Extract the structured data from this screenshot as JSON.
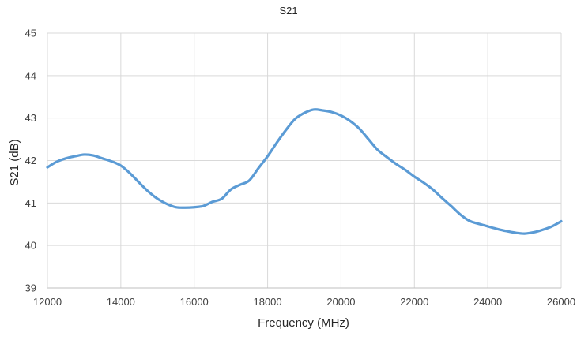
{
  "chart_data": {
    "type": "line",
    "title": "S21",
    "xlabel": "Frequency (MHz)",
    "ylabel": "S21 (dB)",
    "xlim": [
      12000,
      26000
    ],
    "ylim": [
      39,
      45
    ],
    "xticks": [
      "12000",
      "14000",
      "16000",
      "18000",
      "20000",
      "22000",
      "24000",
      "26000"
    ],
    "yticks": [
      "39",
      "40",
      "41",
      "42",
      "43",
      "44",
      "45"
    ],
    "grid": true,
    "legend": "none",
    "series": [
      {
        "color": "#5b9bd5",
        "x": [
          12000,
          12250,
          12500,
          12750,
          13000,
          13250,
          13500,
          13750,
          14000,
          14250,
          14500,
          14750,
          15000,
          15250,
          15500,
          15750,
          16000,
          16250,
          16500,
          16750,
          17000,
          17250,
          17500,
          17750,
          18000,
          18250,
          18500,
          18750,
          19000,
          19250,
          19500,
          19750,
          20000,
          20250,
          20500,
          20750,
          21000,
          21250,
          21500,
          21750,
          22000,
          22250,
          22500,
          22750,
          23000,
          23250,
          23500,
          23750,
          24000,
          24250,
          24500,
          24750,
          25000,
          25250,
          25500,
          25750,
          26000
        ],
        "y": [
          41.84,
          41.97,
          42.05,
          42.1,
          42.14,
          42.12,
          42.05,
          41.98,
          41.88,
          41.7,
          41.48,
          41.27,
          41.1,
          40.98,
          40.9,
          40.89,
          40.9,
          40.93,
          41.03,
          41.1,
          41.32,
          41.43,
          41.53,
          41.82,
          42.1,
          42.42,
          42.72,
          42.98,
          43.12,
          43.2,
          43.18,
          43.14,
          43.06,
          42.93,
          42.75,
          42.5,
          42.25,
          42.08,
          41.92,
          41.78,
          41.62,
          41.48,
          41.32,
          41.12,
          40.93,
          40.73,
          40.58,
          40.51,
          40.45,
          40.39,
          40.34,
          40.3,
          40.28,
          40.31,
          40.37,
          40.45,
          40.57
        ]
      }
    ]
  }
}
